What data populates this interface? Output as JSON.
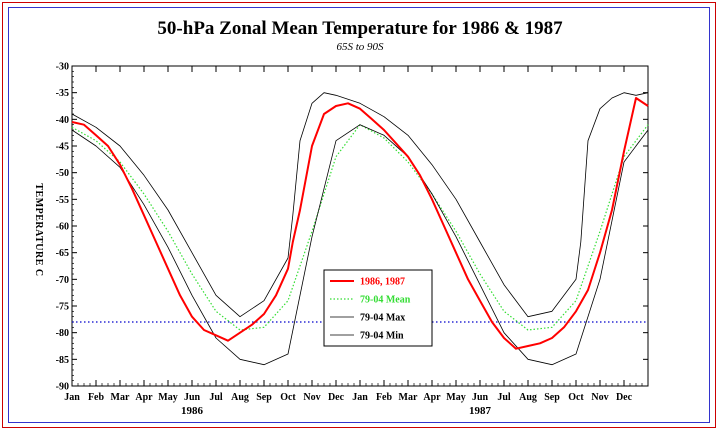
{
  "chart_data": {
    "type": "line",
    "title": "50-hPa Zonal Mean Temperature for 1986 & 1987",
    "subtitle": "65S to 90S",
    "ylabel": "TEMPERATURE C",
    "xlabel": "",
    "ylim": [
      -90,
      -30
    ],
    "yticks": [
      -30,
      -35,
      -40,
      -45,
      -50,
      -55,
      -60,
      -65,
      -70,
      -75,
      -80,
      -85,
      -90
    ],
    "x_unit": "month index (0 = 1 Jan 1986, 24 = 1 Jan 1988)",
    "xlim": [
      0,
      24
    ],
    "month_labels": [
      "Jan",
      "Feb",
      "Mar",
      "Apr",
      "May",
      "Jun",
      "Jul",
      "Aug",
      "Sep",
      "Oct",
      "Nov",
      "Dec",
      "Jan",
      "Feb",
      "Mar",
      "Apr",
      "May",
      "Jun",
      "Jul",
      "Aug",
      "Sep",
      "Oct",
      "Nov",
      "Dec"
    ],
    "year_labels": [
      {
        "text": "1986",
        "month_index": 5
      },
      {
        "text": "1987",
        "month_index": 17
      }
    ],
    "reference_line": {
      "value": -78,
      "color": "#0000cc",
      "style": "dotted"
    },
    "legend_position": "center-bottom",
    "series": [
      {
        "name": "1986, 1987",
        "color": "#ff0000",
        "style": "solid-thick",
        "x": [
          0,
          0.5,
          1,
          1.5,
          2,
          2.5,
          3,
          3.5,
          4,
          4.5,
          5,
          5.5,
          6,
          6.5,
          7,
          7.5,
          8,
          8.5,
          9,
          9.2,
          9.5,
          10,
          10.5,
          11,
          11.5,
          12,
          12.5,
          13,
          13.5,
          14,
          14.5,
          15,
          15.5,
          16,
          16.5,
          17,
          17.5,
          18,
          18.5,
          19,
          19.5,
          20,
          20.5,
          21,
          21.5,
          22,
          22.5,
          23,
          23.5,
          24
        ],
        "y": [
          -40.5,
          -41,
          -43,
          -45,
          -48.5,
          -53,
          -58,
          -63,
          -68,
          -73,
          -77,
          -79.5,
          -80.5,
          -81.5,
          -80,
          -78.5,
          -76.5,
          -73,
          -68,
          -63,
          -57,
          -45,
          -39,
          -37.5,
          -37,
          -38,
          -40,
          -42,
          -44.5,
          -47,
          -50.5,
          -55,
          -60,
          -65,
          -70,
          -74,
          -78,
          -81,
          -83,
          -82.5,
          -82,
          -81,
          -79,
          -76,
          -72,
          -65,
          -57,
          -46,
          -36,
          -37.5
        ]
      },
      {
        "name": "79-04 Mean",
        "color": "#33dd33",
        "style": "dotted",
        "x": [
          0,
          1,
          2,
          3,
          4,
          5,
          6,
          7,
          8,
          9,
          10,
          11,
          12,
          13,
          14,
          15,
          16,
          17,
          18,
          19,
          20,
          21,
          22,
          23,
          24
        ],
        "y": [
          -41.5,
          -44,
          -48,
          -54,
          -61,
          -69,
          -76,
          -79.5,
          -79,
          -74,
          -61,
          -47,
          -41,
          -43.5,
          -48,
          -54,
          -61,
          -69,
          -76,
          -79.5,
          -79,
          -74,
          -61,
          -47,
          -41
        ]
      },
      {
        "name": "79-04 Max",
        "color": "#000000",
        "style": "solid-thin",
        "x": [
          0,
          1,
          2,
          3,
          4,
          5,
          6,
          7,
          8,
          9,
          9.2,
          9.5,
          10,
          10.5,
          11,
          12,
          13,
          14,
          15,
          16,
          17,
          18,
          19,
          20,
          21,
          21.2,
          21.5,
          22,
          22.5,
          23,
          23.5,
          24
        ],
        "y": [
          -39,
          -41.5,
          -45,
          -50.5,
          -57,
          -65,
          -73,
          -77,
          -74,
          -66,
          -58,
          -44,
          -37,
          -35,
          -35.5,
          -37,
          -39.5,
          -43,
          -48.5,
          -55,
          -63,
          -71,
          -77,
          -76,
          -70,
          -63,
          -44,
          -38,
          -36,
          -35,
          -35.5,
          -35
        ]
      },
      {
        "name": "79-04 Min",
        "color": "#000000",
        "style": "solid-thin",
        "x": [
          0,
          1,
          2,
          3,
          4,
          5,
          6,
          7,
          8,
          9,
          10,
          11,
          12,
          13,
          14,
          15,
          16,
          17,
          18,
          19,
          20,
          21,
          22,
          23,
          24
        ],
        "y": [
          -42,
          -45,
          -49,
          -56,
          -64,
          -73,
          -81,
          -85,
          -86,
          -84,
          -62,
          -44,
          -41,
          -43,
          -47,
          -54,
          -62,
          -71,
          -80,
          -85,
          -86,
          -84,
          -70,
          -48,
          -42
        ]
      }
    ]
  }
}
